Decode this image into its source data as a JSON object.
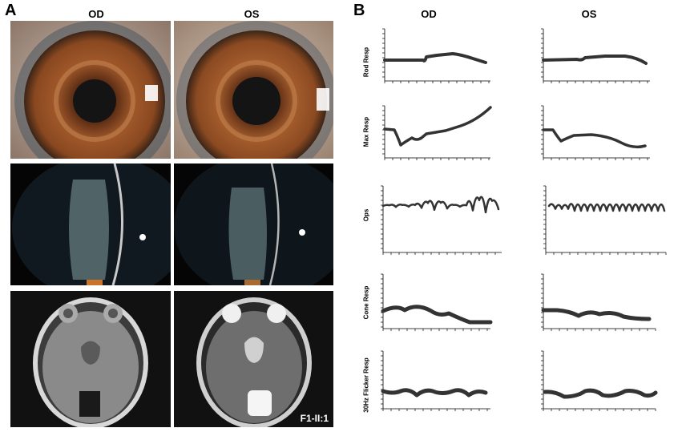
{
  "panel_a": {
    "letter": "A",
    "col_od": "OD",
    "col_os": "OS",
    "subject_label": "F1-II:1"
  },
  "panel_b": {
    "letter": "B",
    "col_od": "OD",
    "col_os": "OS",
    "rows": [
      {
        "label": "Rod Resp"
      },
      {
        "label": "Max Resp"
      },
      {
        "label": "Ops"
      },
      {
        "label": "Cone Resp"
      },
      {
        "label": "30Hz Flicker Resp"
      }
    ]
  },
  "colors": {
    "iris": "#a0582a",
    "pupil": "#141414",
    "trace": "#333333",
    "mri_bg": "#111111"
  }
}
